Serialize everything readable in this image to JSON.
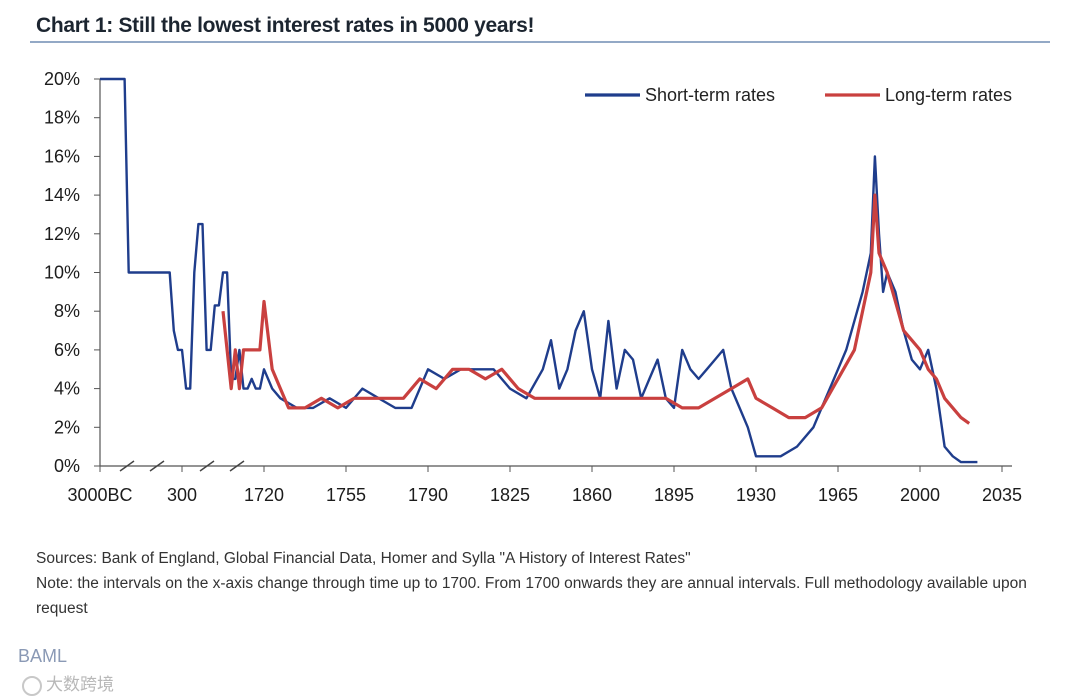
{
  "chart_data": {
    "type": "line",
    "title": "Chart 1:  Still the lowest interest rates in 5000 years!",
    "xlabel": "",
    "ylabel": "",
    "ylim": [
      0,
      20
    ],
    "y_ticks": [
      "0%",
      "2%",
      "4%",
      "6%",
      "8%",
      "10%",
      "12%",
      "14%",
      "16%",
      "18%",
      "20%"
    ],
    "x_ticks": [
      "3000BC",
      "300",
      "1720",
      "1755",
      "1790",
      "1825",
      "1860",
      "1895",
      "1930",
      "1965",
      "2000",
      "2035"
    ],
    "x_tick_index": [
      0,
      1,
      2,
      3,
      4,
      5,
      6,
      7,
      8,
      9,
      10,
      11
    ],
    "note": "x-axis uses broken scale before 1700; x values below are positions in tick units",
    "legend": [
      "Short-term rates",
      "Long-term rates"
    ],
    "series": [
      {
        "name": "Short-term rates",
        "color": "#1f3d8c",
        "points": [
          [
            0.0,
            20
          ],
          [
            0.3,
            20
          ],
          [
            0.35,
            10
          ],
          [
            0.85,
            10
          ],
          [
            0.9,
            7
          ],
          [
            0.95,
            6
          ],
          [
            1.0,
            6
          ],
          [
            1.05,
            4
          ],
          [
            1.1,
            4
          ],
          [
            1.15,
            10
          ],
          [
            1.2,
            12.5
          ],
          [
            1.25,
            12.5
          ],
          [
            1.3,
            6
          ],
          [
            1.35,
            6
          ],
          [
            1.4,
            8.3
          ],
          [
            1.45,
            8.3
          ],
          [
            1.5,
            10
          ],
          [
            1.55,
            10
          ],
          [
            1.6,
            4.5
          ],
          [
            1.65,
            4.5
          ],
          [
            1.7,
            6
          ],
          [
            1.75,
            4
          ],
          [
            1.8,
            4
          ],
          [
            1.85,
            4.5
          ],
          [
            1.9,
            4
          ],
          [
            1.95,
            4
          ],
          [
            2.0,
            5
          ],
          [
            2.1,
            4
          ],
          [
            2.2,
            3.5
          ],
          [
            2.4,
            3
          ],
          [
            2.6,
            3
          ],
          [
            2.8,
            3.5
          ],
          [
            3.0,
            3
          ],
          [
            3.2,
            4
          ],
          [
            3.4,
            3.5
          ],
          [
            3.6,
            3
          ],
          [
            3.8,
            3
          ],
          [
            4.0,
            5
          ],
          [
            4.2,
            4.5
          ],
          [
            4.4,
            5
          ],
          [
            4.6,
            5
          ],
          [
            4.8,
            5
          ],
          [
            5.0,
            4
          ],
          [
            5.2,
            3.5
          ],
          [
            5.4,
            5
          ],
          [
            5.5,
            6.5
          ],
          [
            5.6,
            4
          ],
          [
            5.7,
            5
          ],
          [
            5.8,
            7
          ],
          [
            5.9,
            8
          ],
          [
            6.0,
            5
          ],
          [
            6.1,
            3.5
          ],
          [
            6.2,
            7.5
          ],
          [
            6.3,
            4
          ],
          [
            6.4,
            6
          ],
          [
            6.5,
            5.5
          ],
          [
            6.6,
            3.5
          ],
          [
            6.7,
            4.5
          ],
          [
            6.8,
            5.5
          ],
          [
            6.9,
            3.5
          ],
          [
            7.0,
            3
          ],
          [
            7.1,
            6
          ],
          [
            7.2,
            5
          ],
          [
            7.3,
            4.5
          ],
          [
            7.4,
            5
          ],
          [
            7.5,
            5.5
          ],
          [
            7.6,
            6
          ],
          [
            7.7,
            4
          ],
          [
            7.8,
            3
          ],
          [
            7.9,
            2
          ],
          [
            8.0,
            0.5
          ],
          [
            8.1,
            0.5
          ],
          [
            8.3,
            0.5
          ],
          [
            8.5,
            1
          ],
          [
            8.7,
            2
          ],
          [
            8.8,
            3
          ],
          [
            8.9,
            4
          ],
          [
            9.0,
            5
          ],
          [
            9.1,
            6
          ],
          [
            9.2,
            7.5
          ],
          [
            9.3,
            9
          ],
          [
            9.4,
            11
          ],
          [
            9.45,
            16
          ],
          [
            9.5,
            12
          ],
          [
            9.55,
            9
          ],
          [
            9.6,
            10
          ],
          [
            9.7,
            9
          ],
          [
            9.8,
            7
          ],
          [
            9.9,
            5.5
          ],
          [
            10.0,
            5
          ],
          [
            10.1,
            6
          ],
          [
            10.2,
            4
          ],
          [
            10.3,
            1
          ],
          [
            10.4,
            0.5
          ],
          [
            10.5,
            0.2
          ],
          [
            10.7,
            0.2
          ]
        ]
      },
      {
        "name": "Long-term rates",
        "color": "#c9403f",
        "points": [
          [
            1.5,
            8
          ],
          [
            1.55,
            6
          ],
          [
            1.6,
            4
          ],
          [
            1.65,
            6
          ],
          [
            1.7,
            4
          ],
          [
            1.75,
            6
          ],
          [
            1.8,
            6
          ],
          [
            1.85,
            6
          ],
          [
            1.9,
            6
          ],
          [
            1.95,
            6
          ],
          [
            2.0,
            8.5
          ],
          [
            2.1,
            5
          ],
          [
            2.2,
            4
          ],
          [
            2.3,
            3
          ],
          [
            2.5,
            3
          ],
          [
            2.7,
            3.5
          ],
          [
            2.9,
            3
          ],
          [
            3.1,
            3.5
          ],
          [
            3.3,
            3.5
          ],
          [
            3.5,
            3.5
          ],
          [
            3.7,
            3.5
          ],
          [
            3.9,
            4.5
          ],
          [
            4.1,
            4
          ],
          [
            4.3,
            5
          ],
          [
            4.5,
            5
          ],
          [
            4.7,
            4.5
          ],
          [
            4.9,
            5
          ],
          [
            5.1,
            4
          ],
          [
            5.3,
            3.5
          ],
          [
            5.5,
            3.5
          ],
          [
            5.7,
            3.5
          ],
          [
            5.9,
            3.5
          ],
          [
            6.1,
            3.5
          ],
          [
            6.3,
            3.5
          ],
          [
            6.5,
            3.5
          ],
          [
            6.7,
            3.5
          ],
          [
            6.9,
            3.5
          ],
          [
            7.1,
            3
          ],
          [
            7.3,
            3
          ],
          [
            7.5,
            3.5
          ],
          [
            7.7,
            4
          ],
          [
            7.9,
            4.5
          ],
          [
            8.0,
            3.5
          ],
          [
            8.2,
            3
          ],
          [
            8.4,
            2.5
          ],
          [
            8.6,
            2.5
          ],
          [
            8.8,
            3
          ],
          [
            9.0,
            4.5
          ],
          [
            9.2,
            6
          ],
          [
            9.3,
            8
          ],
          [
            9.4,
            10
          ],
          [
            9.45,
            14
          ],
          [
            9.5,
            11
          ],
          [
            9.6,
            10
          ],
          [
            9.7,
            8.5
          ],
          [
            9.8,
            7
          ],
          [
            9.9,
            6.5
          ],
          [
            10.0,
            6
          ],
          [
            10.1,
            5
          ],
          [
            10.2,
            4.5
          ],
          [
            10.3,
            3.5
          ],
          [
            10.4,
            3
          ],
          [
            10.5,
            2.5
          ],
          [
            10.6,
            2.2
          ]
        ]
      }
    ]
  },
  "sources_line": "Sources: Bank of England, Global Financial Data, Homer and Sylla \"A History of Interest Rates\"",
  "note_line": "Note: the intervals on the x-axis change through time up to 1700. From 1700 onwards they are annual intervals. Full methodology available upon request",
  "footer_mark": "BAML",
  "watermark": "大数跨境"
}
